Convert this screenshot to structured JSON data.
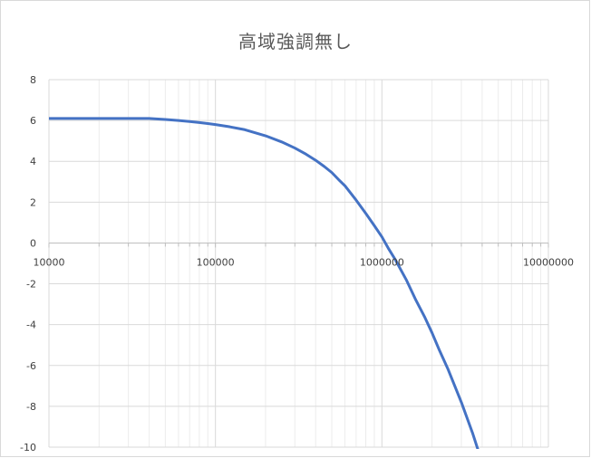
{
  "chart_data": {
    "type": "line",
    "title": "高域強調無し",
    "xscale": "log",
    "xlim": [
      10000,
      10000000
    ],
    "ylim": [
      -10,
      8
    ],
    "grid": true,
    "x_tick_labels": [
      "10000",
      "100000",
      "1000000",
      "10000000"
    ],
    "y_tick_labels": [
      "8",
      "6",
      "4",
      "2",
      "0",
      "-2",
      "-4",
      "-6",
      "-8",
      "-10"
    ],
    "line_color": "#4472c4",
    "series": [
      {
        "x": [
          10000,
          20000,
          30000,
          40000,
          50000,
          60000,
          70000,
          80000,
          90000,
          100000,
          120000,
          150000,
          200000,
          250000,
          300000,
          350000,
          400000,
          450000,
          500000,
          550000,
          600000,
          700000,
          800000,
          900000,
          1000000,
          1100000,
          1200000,
          1400000,
          1600000,
          1800000,
          2000000,
          2200000,
          2500000,
          3000000,
          3500000,
          3800000
        ],
        "y": [
          6.1,
          6.1,
          6.1,
          6.1,
          6.05,
          6.0,
          5.95,
          5.9,
          5.85,
          5.8,
          5.7,
          5.55,
          5.25,
          4.95,
          4.65,
          4.35,
          4.05,
          3.75,
          3.45,
          3.1,
          2.8,
          2.1,
          1.45,
          0.85,
          0.3,
          -0.3,
          -0.8,
          -1.8,
          -2.8,
          -3.6,
          -4.4,
          -5.2,
          -6.2,
          -7.8,
          -9.3,
          -10.2
        ]
      }
    ]
  }
}
